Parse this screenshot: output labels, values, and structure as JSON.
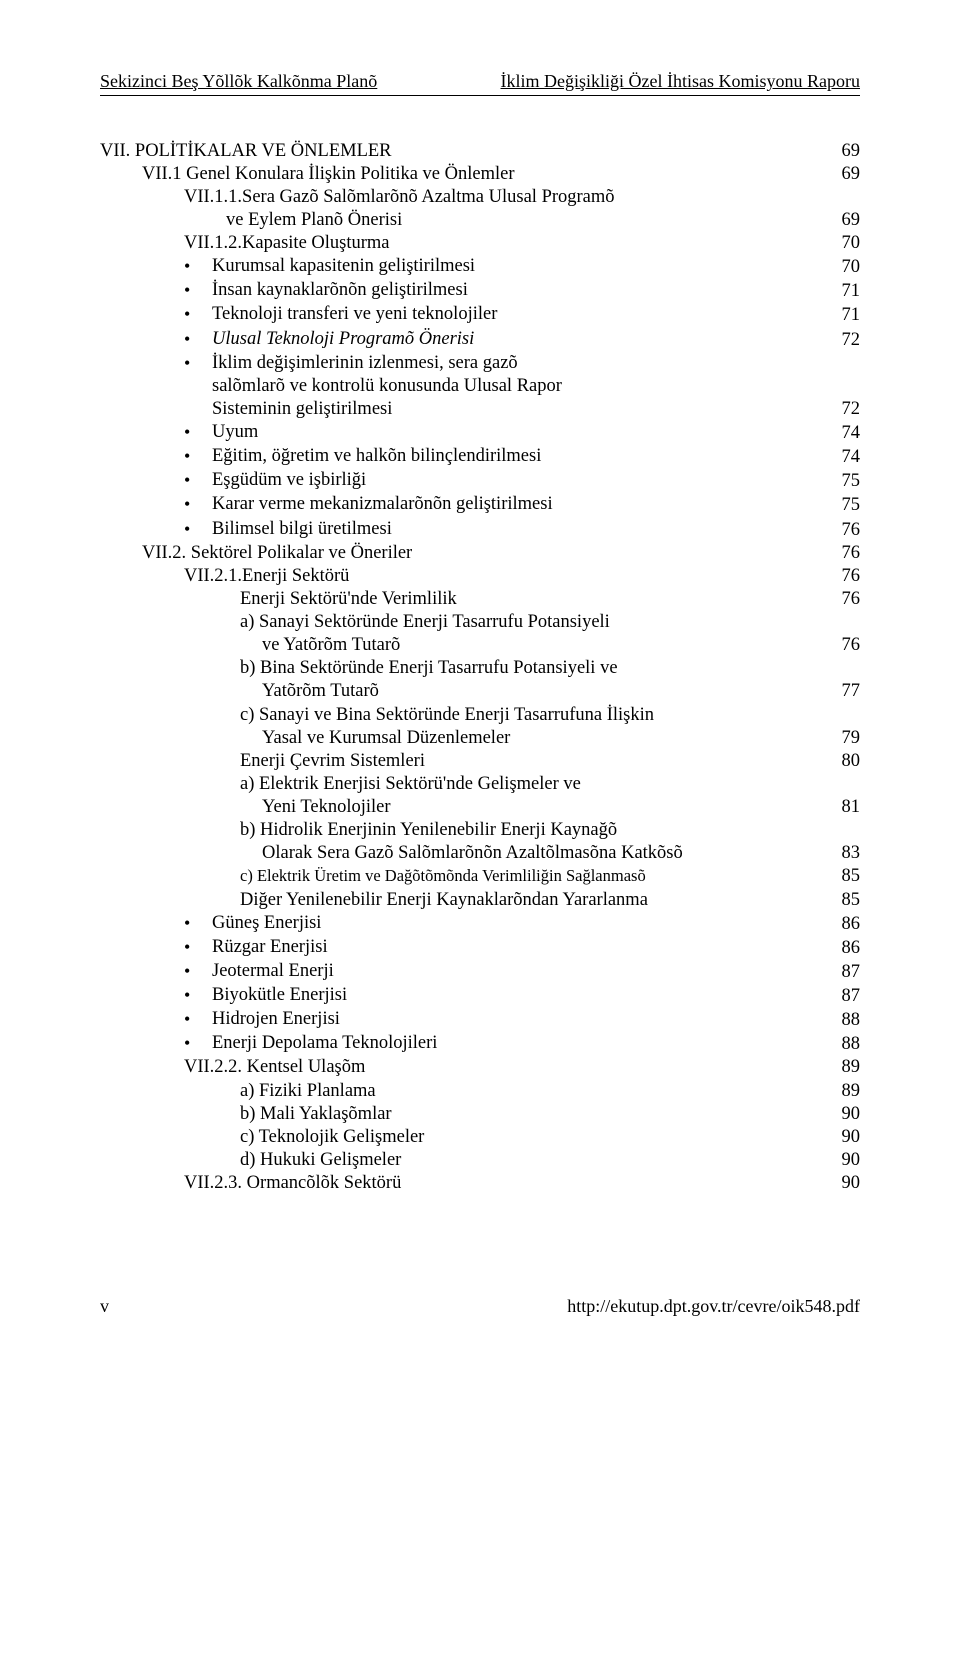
{
  "header": {
    "left": "Sekizinci Beş Yõllõk Kalkõnma Planõ",
    "right": "İklim Değişikliği Özel İhtisas Komisyonu Raporu"
  },
  "toc": [
    {
      "indent": 0,
      "label": "VII.   POLİTİKALAR VE ÖNLEMLER",
      "page": "69"
    },
    {
      "indent": 1,
      "label": "VII.1  Genel Konulara İlişkin Politika ve Önlemler",
      "page": "69"
    },
    {
      "indent": 2,
      "label": "VII.1.1.Sera Gazõ Salõmlarõnõ Azaltma Ulusal Programõ",
      "page": ""
    },
    {
      "indent": 3,
      "type": "cont",
      "label": "     ve Eylem Planõ Önerisi",
      "page": "69"
    },
    {
      "indent": 2,
      "label": "VII.1.2.Kapasite Oluşturma",
      "page": "70"
    },
    {
      "indent": 2,
      "bullet": true,
      "label": "Kurumsal kapasitenin geliştirilmesi",
      "page": "70"
    },
    {
      "indent": 2,
      "bullet": true,
      "label": "İnsan kaynaklarõnõn geliştirilmesi",
      "page": "71"
    },
    {
      "indent": 2,
      "bullet": true,
      "label": "Teknoloji transferi ve yeni teknolojiler",
      "page": "71"
    },
    {
      "indent": 2,
      "bullet": true,
      "italic": true,
      "label": "Ulusal Teknoloji Programõ Önerisi",
      "page": "72"
    },
    {
      "indent": 2,
      "bullet": true,
      "label": "İklim değişimlerinin izlenmesi, sera gazõ",
      "page": ""
    },
    {
      "indent": 2,
      "type": "bullet-cont",
      "label": "salõmlarõ ve kontrolü konusunda Ulusal Rapor",
      "page": ""
    },
    {
      "indent": 2,
      "type": "bullet-cont",
      "label": "Sisteminin geliştirilmesi",
      "page": "72"
    },
    {
      "indent": 2,
      "bullet": true,
      "label": "Uyum",
      "page": "74"
    },
    {
      "indent": 2,
      "bullet": true,
      "label": "Eğitim, öğretim ve halkõn bilinçlendirilmesi",
      "page": "74"
    },
    {
      "indent": 2,
      "bullet": true,
      "label": "Eşgüdüm ve işbirliği",
      "page": "75"
    },
    {
      "indent": 2,
      "bullet": true,
      "label": "Karar verme mekanizmalarõnõn geliştirilmesi",
      "page": "75"
    },
    {
      "indent": 2,
      "bullet": true,
      "label": "Bilimsel bilgi üretilmesi",
      "page": "76"
    },
    {
      "indent": 1,
      "label": "VII.2.  Sektörel Polikalar ve Öneriler",
      "page": "76"
    },
    {
      "indent": 2,
      "label": "VII.2.1.Enerji Sektörü",
      "page": "76"
    },
    {
      "indent": 2,
      "type": "sub",
      "label": "Enerji Sektörü'nde Verimlilik",
      "page": "76"
    },
    {
      "indent": 2,
      "type": "sub",
      "label": "a)  Sanayi Sektöründe Enerji Tasarrufu Potansiyeli",
      "page": ""
    },
    {
      "indent": 2,
      "type": "sub-cont",
      "label": "     ve Yatõrõm Tutarõ",
      "page": "76"
    },
    {
      "indent": 2,
      "type": "sub",
      "label": "b)  Bina Sektöründe Enerji Tasarrufu Potansiyeli ve",
      "page": ""
    },
    {
      "indent": 2,
      "type": "sub-cont",
      "label": "     Yatõrõm Tutarõ",
      "page": "77"
    },
    {
      "indent": 2,
      "type": "sub",
      "label": "c)  Sanayi ve Bina Sektöründe Enerji Tasarrufuna İlişkin",
      "page": ""
    },
    {
      "indent": 2,
      "type": "sub-cont",
      "label": "     Yasal ve Kurumsal Düzenlemeler",
      "page": "79"
    },
    {
      "indent": 2,
      "type": "sub",
      "label": "Enerji Çevrim Sistemleri",
      "page": "80"
    },
    {
      "indent": 2,
      "type": "sub",
      "label": "a)  Elektrik Enerjisi Sektörü'nde Gelişmeler ve",
      "page": ""
    },
    {
      "indent": 2,
      "type": "sub-cont",
      "label": "     Yeni Teknolojiler",
      "page": "81"
    },
    {
      "indent": 2,
      "type": "sub",
      "label": "b)  Hidrolik Enerjinin Yenilenebilir Enerji Kaynağõ",
      "page": ""
    },
    {
      "indent": 2,
      "type": "sub-cont",
      "label": "     Olarak Sera Gazõ Salõmlarõnõn Azaltõlmasõna Katkõsõ",
      "page": "83"
    },
    {
      "indent": 2,
      "type": "sub",
      "small": true,
      "label": "c)   Elektrik Üretim ve Dağõtõmõnda Verimliliğin Sağlanmasõ",
      "page": "85"
    },
    {
      "indent": 2,
      "type": "sub",
      "label": "Diğer Yenilenebilir Enerji Kaynaklarõndan Yararlanma",
      "page": "85"
    },
    {
      "indent": 2,
      "bullet": true,
      "label": "Güneş Enerjisi",
      "page": "86"
    },
    {
      "indent": 2,
      "bullet": true,
      "label": "Rüzgar Enerjisi",
      "page": "86"
    },
    {
      "indent": 2,
      "bullet": true,
      "label": "Jeotermal Enerji",
      "page": "87"
    },
    {
      "indent": 2,
      "bullet": true,
      "label": "Biyokütle Enerjisi",
      "page": "87"
    },
    {
      "indent": 2,
      "bullet": true,
      "label": "Hidrojen Enerjisi",
      "page": "88"
    },
    {
      "indent": 2,
      "bullet": true,
      "label": "Enerji Depolama Teknolojileri",
      "page": "88"
    },
    {
      "indent": 2,
      "label": "VII.2.2. Kentsel Ulaşõm",
      "page": "89"
    },
    {
      "indent": 2,
      "type": "sub",
      "label": "a) Fiziki Planlama",
      "page": "89"
    },
    {
      "indent": 2,
      "type": "sub",
      "label": "b) Mali Yaklaşõmlar",
      "page": "90"
    },
    {
      "indent": 2,
      "type": "sub",
      "label": "c) Teknolojik Gelişmeler",
      "page": "90"
    },
    {
      "indent": 2,
      "type": "sub",
      "label": "d) Hukuki Gelişmeler",
      "page": "90"
    },
    {
      "indent": 2,
      "label": "VII.2.3. Ormancõlõk Sektörü",
      "page": "90"
    }
  ],
  "footer": {
    "left": "v",
    "right": "http://ekutup.dpt.gov.tr/cevre/oik548.pdf"
  }
}
